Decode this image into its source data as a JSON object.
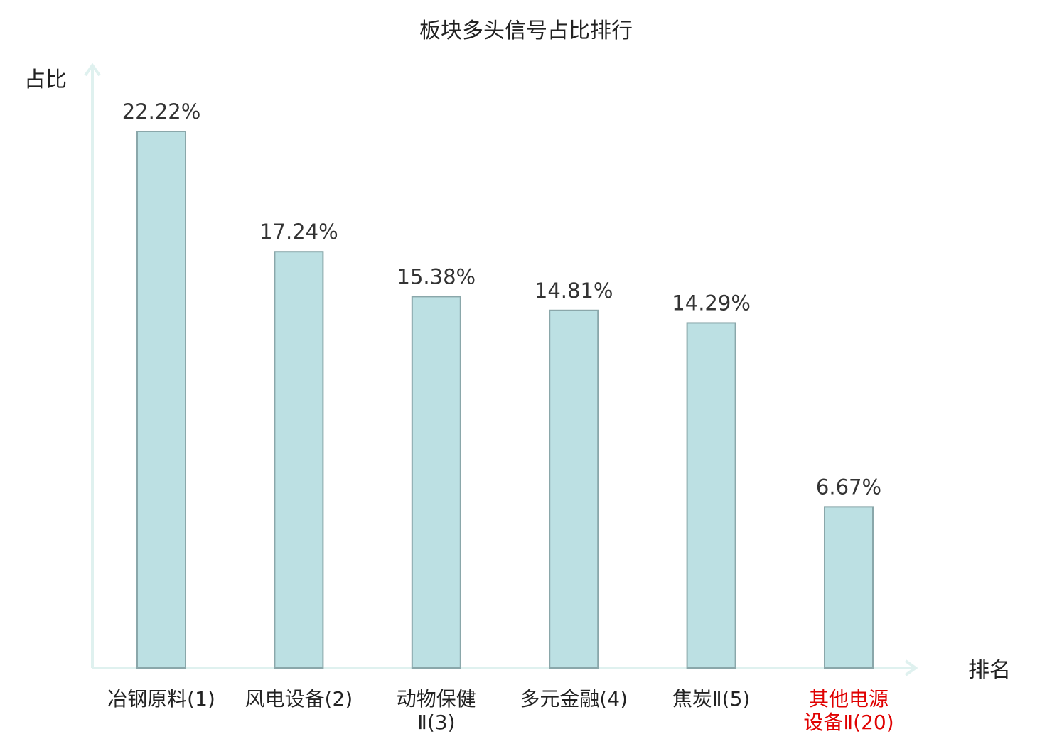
{
  "chart_data": {
    "type": "bar",
    "title": "板块多头信号占比排行",
    "ylabel": "占比",
    "xlabel": "排名",
    "categories": [
      [
        "冶钢原料(1)"
      ],
      [
        "风电设备(2)"
      ],
      [
        "动物保健",
        "Ⅱ(3)"
      ],
      [
        "多元金融(4)"
      ],
      [
        "焦炭Ⅱ(5)"
      ],
      [
        "其他电源",
        "设备Ⅱ(20)"
      ]
    ],
    "values": [
      22.22,
      17.24,
      15.38,
      14.81,
      14.29,
      6.67
    ],
    "value_labels": [
      "22.22%",
      "17.24%",
      "15.38%",
      "14.81%",
      "14.29%",
      "6.67%"
    ],
    "highlight_index": 5,
    "ylim": [
      0,
      25
    ],
    "grid": false,
    "colors": {
      "bar_fill": "#bce0e3",
      "bar_stroke": "#8aa7aa",
      "axis": "#dff1ef",
      "highlight_text": "#e00000"
    }
  }
}
